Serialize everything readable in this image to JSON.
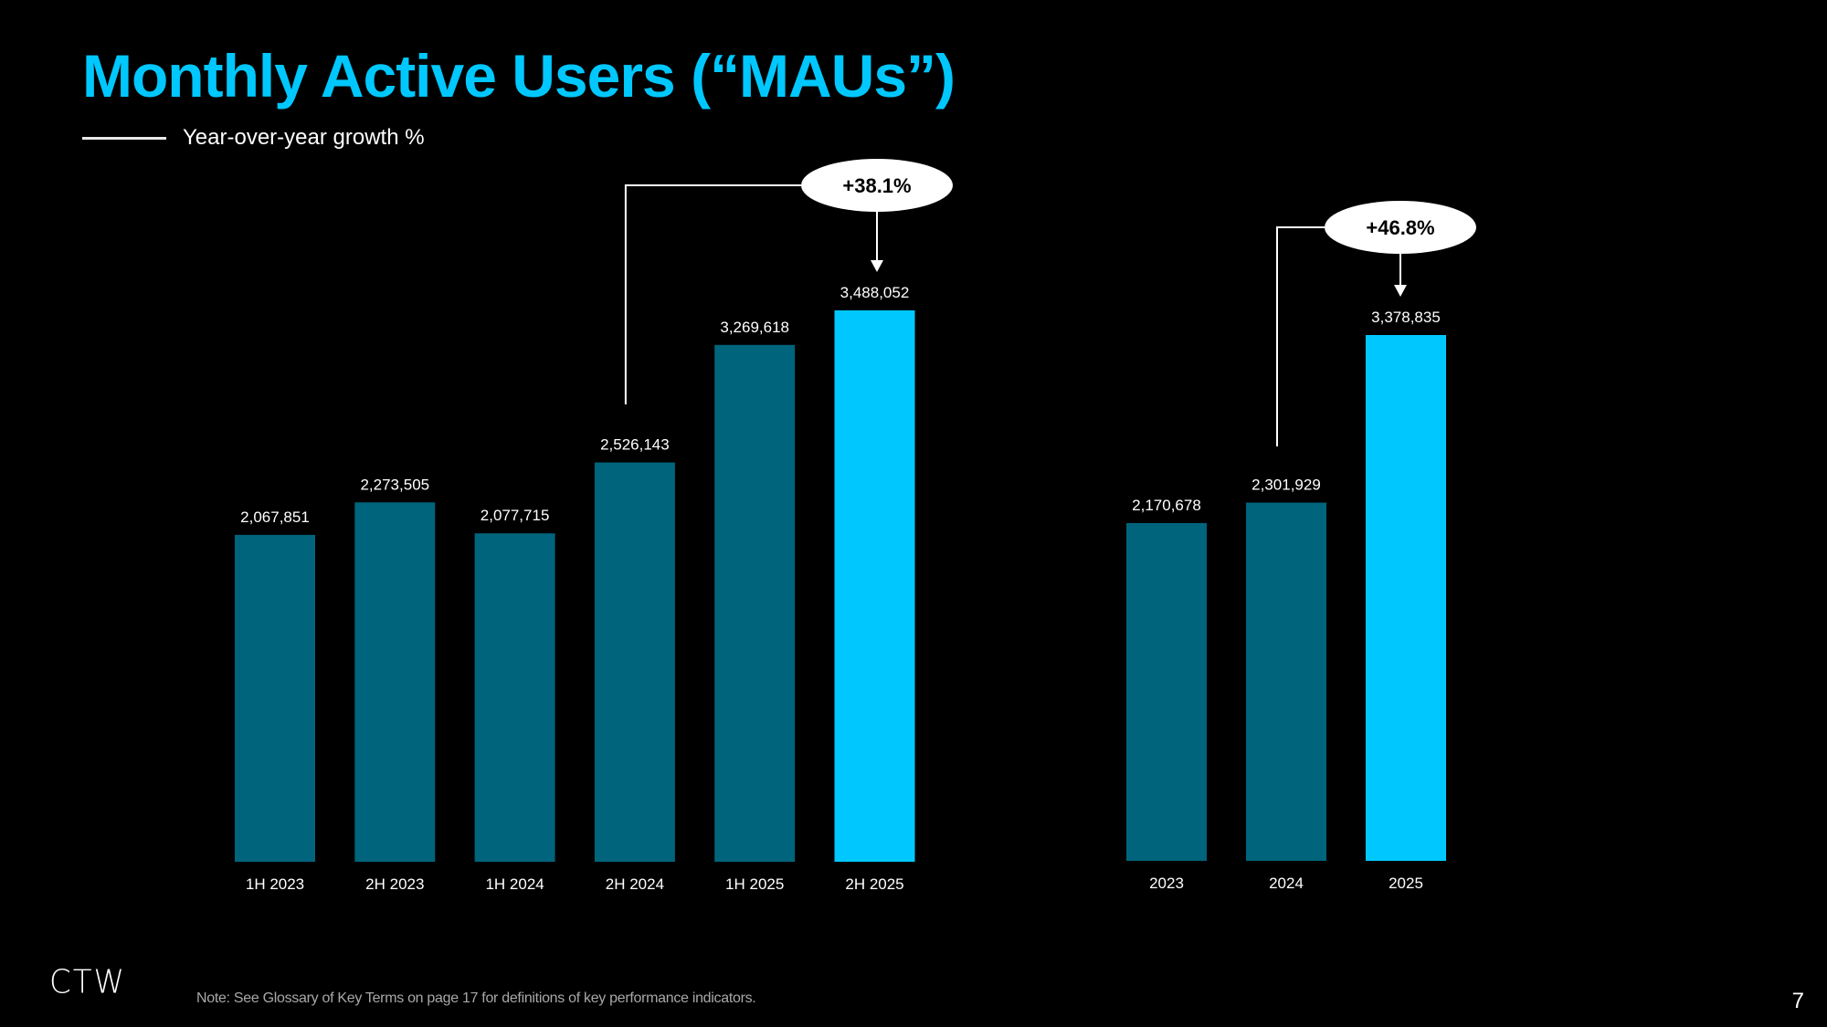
{
  "title": "Monthly Active Users (“MAUs”)",
  "legend": {
    "label": "Year-over-year growth %"
  },
  "colors": {
    "accent": "#00c8ff",
    "bar_dark": "#00647c",
    "background": "#000000",
    "callout_fill": "#ffffff"
  },
  "chart_data": [
    {
      "type": "bar",
      "title": "Monthly Active Users (“MAUs”) — Half-year",
      "xlabel": "",
      "ylabel": "",
      "categories": [
        "1H 2023",
        "2H 2023",
        "1H 2024",
        "2H 2024",
        "1H 2025",
        "2H 2025"
      ],
      "values": [
        2067851,
        2273505,
        2077715,
        2526143,
        3269618,
        3488052
      ],
      "value_labels": [
        "2,067,851",
        "2,273,505",
        "2,077,715",
        "2,526,143",
        "3,269,618",
        "3,488,052"
      ],
      "highlight_index": 5,
      "ylim": [
        0,
        3488052
      ],
      "grid": false,
      "annotation": {
        "text": "+38.1%",
        "from_category": "2H 2024",
        "to_category": "2H 2025",
        "meaning": "Year-over-year growth %"
      }
    },
    {
      "type": "bar",
      "title": "Monthly Active Users (“MAUs”) — Annual",
      "xlabel": "",
      "ylabel": "",
      "categories": [
        "2023",
        "2024",
        "2025"
      ],
      "values": [
        2170678,
        2301929,
        3378835
      ],
      "value_labels": [
        "2,170,678",
        "2,301,929",
        "3,378,835"
      ],
      "highlight_index": 2,
      "ylim": [
        0,
        3378835
      ],
      "grid": false,
      "annotation": {
        "text": "+46.8%",
        "from_category": "2024",
        "to_category": "2025",
        "meaning": "Year-over-year growth %"
      }
    }
  ],
  "footer": {
    "logo": "CTW",
    "note": "Note: See Glossary of Key Terms on page 17 for definitions of key performance indicators.",
    "page_number": "7"
  }
}
